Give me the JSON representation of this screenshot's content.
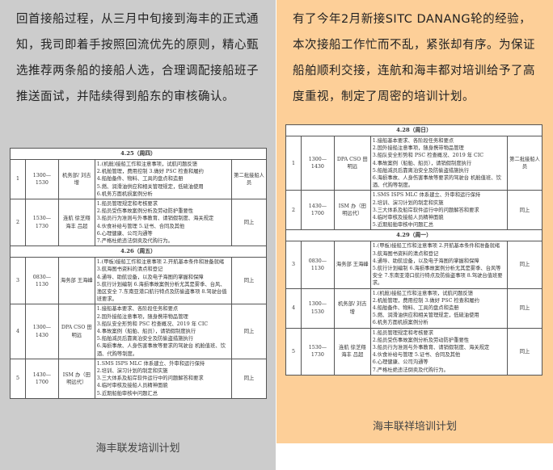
{
  "left": {
    "paragraph": "回首接船过程，从三月中旬接到海丰的正式通知，我司即着手按照回流优先的原则，精心甄选推荐两条船的接船人选，合理调配接船班子推送面试，并陆续得到船东的审核确认。",
    "caption": "海丰联发培训计划",
    "table": [
      {
        "day": "4.25（周四）",
        "rows": [
          {
            "no": "1",
            "time": "1300—1530",
            "presenter": "机务部/ 刘吉增",
            "content": [
              "1.(机舱)接船工作和注意事项，试航问题反馈",
              "2.机舱管理，费用控制 3.做好 PSC 检查和履约",
              "4.船舶备件、物料、工具的盘点和造册",
              "5.燃、润滑油供应和相关管理规定，低硫油使用",
              "6.机务方面机损案例分析"
            ],
            "remark": "第二批接船人员"
          },
          {
            "no": "2",
            "time": "1530—1730",
            "presenter": "连航 徐芝翔 海丰 吕超",
            "content": [
              "1.船员管理规定和考核要求",
              "2.船员受伤事故案例分析及劳动防护重要性",
              "3.船员行为准则与外事教育、请销假制度、海关规定",
              "4.伙食补给与管理 5.证书、合同及其他",
              "6.心理健康、公司沟通等",
              "7.严格杜绝违法倒卖及代购行为。"
            ],
            "remark": "同上"
          }
        ]
      },
      {
        "day": "4.26（周五）",
        "rows": [
          {
            "no": "3",
            "time": "0830—1130",
            "presenter": "海务部 王海峰",
            "content": [
              "1.(甲板)接船工作和注意事项 2.开航基本条件和准备就绪 3.航海图书资料的清点和登记",
              "4.通导、助航设备，以及电子海图的掌握和保障",
              "5.航行计划编制 6.海损事故案例分析尤其是雾季、台风、渔区安全 7.东南亚港口航行特点及防偷盗事项 8.驾驶台值班要求。"
            ],
            "remark": "同上"
          },
          {
            "no": "4",
            "time": "1300—1430",
            "presenter": "DPA CSO 田明远",
            "content": [
              "1.接船基本要求、各阶段任务和要点",
              "2.国外接船注意事项，随身携带物品管理",
              "3.船队安全形势和 PSC 检查概况、2019 年 CIC",
              "4.事故案例（船舶、船员），请销假制度执行",
              "5.船舶减员后靠离泊安全及防偷盗措施执行",
              "6.海损事故、人身伤害事故等要求的驾驶台 机舱值班、饮酒、代购等制度。"
            ],
            "remark": "同上"
          },
          {
            "no": "5",
            "time": "1430—1700",
            "presenter": "ISM 办（田明远代）",
            "content": [
              "1.SMS ISPS MLC 体系建立、外审和运行保持",
              "2.培训、演习计划的制定和实施",
              "3.三大体系及船岸软件运行中的问题解答和要求",
              "4.临时审核及接船人员精神面貌",
              "5.近期船舶审核中问题汇总"
            ],
            "remark": "同上"
          }
        ]
      }
    ]
  },
  "right": {
    "paragraph": "有了今年2月新接SITC DANANG轮的经验，本次接船工作忙而不乱，紧张却有序。为保证船舶顺利交接，连航和海丰都对培训给予了高度重视，制定了周密的培训计划。",
    "caption": "海丰联祥培训计划",
    "table": [
      {
        "day": "4.28（周日）",
        "rows": [
          {
            "no": "1",
            "time": "1300—1430",
            "presenter": "DPA CSO 田明远",
            "content": [
              "1.接船基本要求、各阶段任务和要点",
              "2.国外接船注意事项，随身携带物品管理",
              "3.船队安全形势和 PSC 检查概况、2019 年 CIC",
              "4.事故案例（船舶、船员），请销假制度执行",
              "5.船舶减员后靠离泊安全及防偷盗措施执行",
              "6.海损事故、人身伤害事故等要求的驾驶台 机舱值班、饮酒、代购等制度。"
            ],
            "remark": "第二批接船人员"
          },
          {
            "no": "2",
            "time": "1430—1700",
            "presenter": "ISM 办（田明远代）",
            "content": [
              "1.SMS ISPS MLC 体系建立、外审和运行保持",
              "2.培训、演习计划的制定和实施",
              "3.三大体系及船岸软件运行中的问题解答和要求",
              "4.临时审核及接船人员精神面貌",
              "5.近期船舶审核中问题汇总"
            ],
            "remark": "同上"
          }
        ]
      },
      {
        "day": "4.29（周一）",
        "rows": [
          {
            "no": "3",
            "time": "0830—1130",
            "presenter": "海务部 王海峰",
            "content": [
              "1.(甲板)接船工作和注意事项 2.开航基本条件和准备就绪 3.航海图书资料的清点和登记",
              "4.通导、助航设备，以及电子海图的掌握和保障",
              "5.航行计划编制 6.海损事故案例分析尤其是雾季、台风等安全 7.东南亚港口航行特点及防偷盗事项 8.驾驶台值班要求。"
            ],
            "remark": "同上"
          },
          {
            "no": "4",
            "time": "1300—1530",
            "presenter": "机务部/ 刘吉增",
            "content": [
              "1.(机舱)接船工作和注意事项，试航问题反馈",
              "2.机舱管理，费用控制 3.做好 PSC 检查和履约",
              "4.船舶备件、物料、工具的盘点和造册",
              "5.燃、润滑油供应和相关管理规定，低硫油使用",
              "6.机务方面机损案例分析"
            ],
            "remark": "同上"
          },
          {
            "no": "5",
            "time": "1530—1730",
            "presenter": "连航 徐芝翔 海丰 吕超",
            "content": [
              "1.船员管理规定和考核要求",
              "2.船员受伤事故案例分析及劳动防护重要性",
              "3.船员行为准则与外事教育、请销假制度、海关规定",
              "4.伙食补给与管理 5.证书、合同及其他",
              "6.心理健康、公司沟通等",
              "7.严格杜绝违法倒卖及代购行为。"
            ],
            "remark": "同上"
          }
        ]
      }
    ]
  },
  "colors": {
    "left_bg": "#cccccc",
    "right_bg": "#fdcf98"
  }
}
